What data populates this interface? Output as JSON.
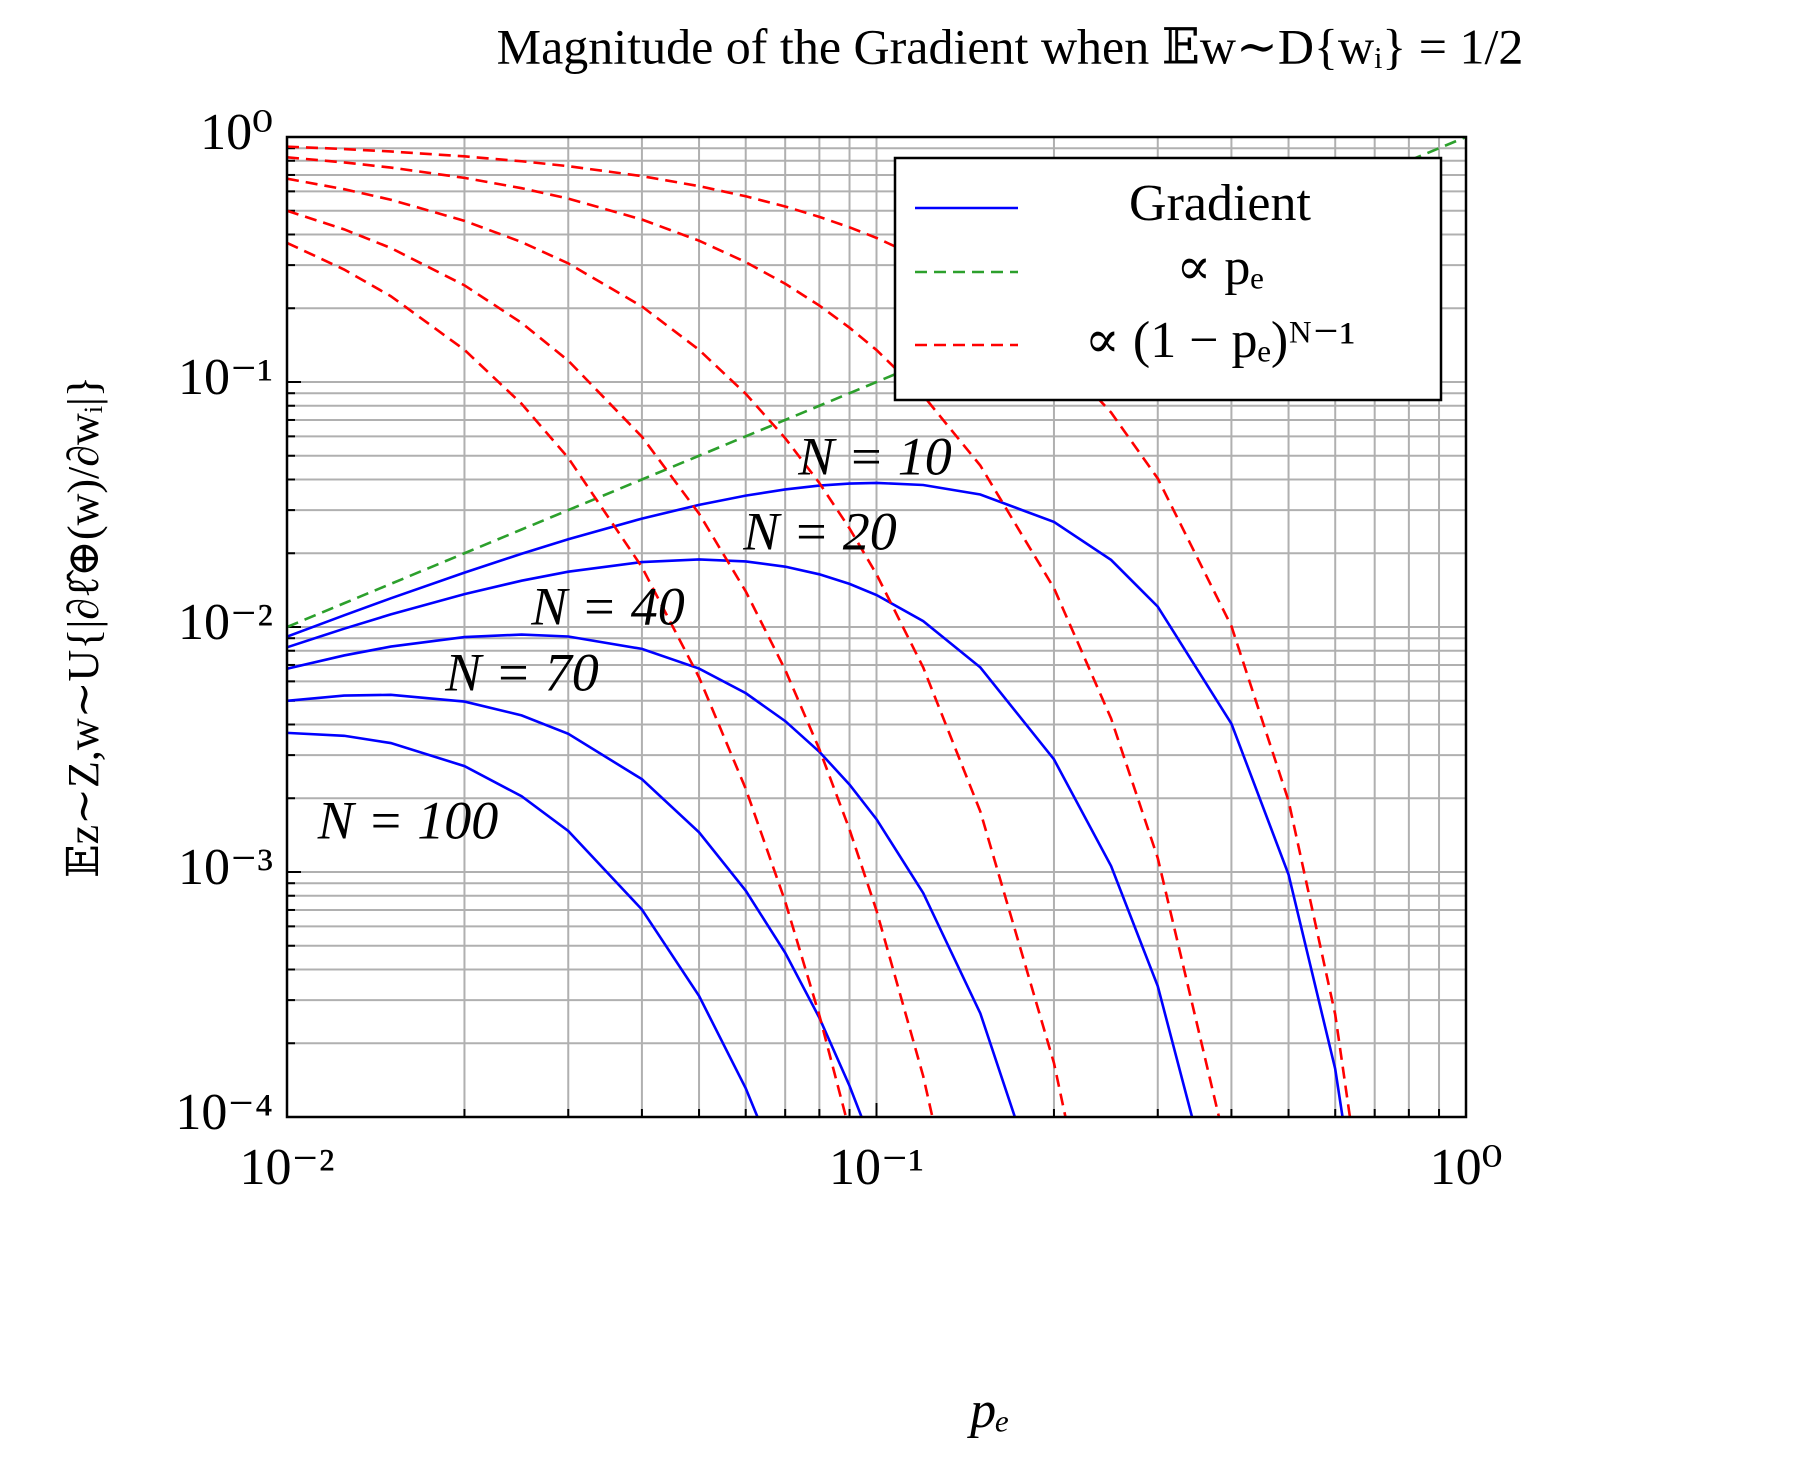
{
  "chart_data": {
    "type": "line",
    "title": "Magnitude of the Gradient when 𝔼w∼D{wᵢ} = 1/2",
    "xlabel": "pₑ",
    "ylabel": "𝔼z∼Z,w∼U{|∂ℓ̂⊕(w)/∂wᵢ|}",
    "xscale": "log",
    "yscale": "log",
    "xlim": [
      0.01,
      1
    ],
    "ylim": [
      0.0001,
      1
    ],
    "xticks": [
      {
        "value": 0.01,
        "label": "10⁻²"
      },
      {
        "value": 0.1,
        "label": "10⁻¹"
      },
      {
        "value": 1,
        "label": "10⁰"
      }
    ],
    "yticks": [
      {
        "value": 0.0001,
        "label": "10⁻⁴"
      },
      {
        "value": 0.001,
        "label": "10⁻³"
      },
      {
        "value": 0.01,
        "label": "10⁻²"
      },
      {
        "value": 0.1,
        "label": "10⁻¹"
      },
      {
        "value": 1,
        "label": "10⁰"
      }
    ],
    "x_minor_ticks": [
      0.02,
      0.03,
      0.04,
      0.05,
      0.06,
      0.07,
      0.08,
      0.09,
      0.2,
      0.3,
      0.4,
      0.5,
      0.6,
      0.7,
      0.8,
      0.9
    ],
    "y_minor_ticks": [
      0.0002,
      0.0003,
      0.0004,
      0.0005,
      0.0006,
      0.0007,
      0.0008,
      0.0009,
      0.002,
      0.003,
      0.004,
      0.005,
      0.006,
      0.007,
      0.008,
      0.009,
      0.02,
      0.03,
      0.04,
      0.05,
      0.06,
      0.07,
      0.08,
      0.09,
      0.2,
      0.3,
      0.4,
      0.5,
      0.6,
      0.7,
      0.8,
      0.9
    ],
    "grid": true,
    "x": [
      0.01,
      0.0125,
      0.015,
      0.02,
      0.025,
      0.03,
      0.04,
      0.05,
      0.06,
      0.07,
      0.08,
      0.09,
      0.1,
      0.12,
      0.15,
      0.2,
      0.25,
      0.3,
      0.4,
      0.5,
      0.6,
      0.7,
      0.8,
      0.9,
      1.0
    ],
    "series": [
      {
        "name": "N = 10",
        "color": "#0000ff",
        "linestyle": "solid",
        "values": [
          0.009135,
          0.011163,
          0.013092,
          0.016674,
          0.019905,
          0.022806,
          0.0277,
          0.03151,
          0.03438,
          0.03643,
          0.03778,
          0.03851,
          0.03874,
          0.03798,
          0.03474,
          0.02684,
          0.01878,
          0.01211,
          0.004032,
          0.000977,
          0.000157,
          1.38e-05,
          null,
          null,
          null
        ]
      },
      {
        "name": "N = 20",
        "color": "#0000ff",
        "linestyle": "solid",
        "values": [
          0.008262,
          0.009843,
          0.011256,
          0.013624,
          0.015453,
          0.016818,
          0.018416,
          0.01887,
          0.018516,
          0.017633,
          0.016408,
          0.014994,
          0.01351,
          0.010572,
          0.00684,
          0.002882,
          0.001058,
          0.000342,
          2.44e-05,
          null,
          null,
          null,
          null,
          null,
          null
        ]
      },
      {
        "name": "N = 40",
        "color": "#0000ff",
        "linestyle": "solid",
        "values": [
          0.006757,
          0.007654,
          0.008319,
          0.009096,
          0.009315,
          0.009147,
          0.00814,
          0.006765,
          0.00537,
          0.00413,
          0.003096,
          0.002273,
          0.001642,
          0.000821,
          0.000265,
          3.32e-05,
          null,
          null,
          null,
          null,
          null,
          null,
          null,
          null,
          null
        ]
      },
      {
        "name": "N = 70",
        "color": "#0000ff",
        "linestyle": "solid",
        "values": [
          0.004998,
          0.005248,
          0.005286,
          0.004962,
          0.004358,
          0.003666,
          0.002392,
          0.001452,
          0.000839,
          0.000468,
          0.000254,
          0.000134,
          6.96e-05,
          null,
          null,
          null,
          null,
          null,
          null,
          null,
          null,
          null,
          null,
          null,
          null
        ]
      },
      {
        "name": "N = 100",
        "color": "#0000ff",
        "linestyle": "solid",
        "values": [
          0.003697,
          0.003598,
          0.00336,
          0.002706,
          0.002038,
          0.00147,
          0.000703,
          0.000312,
          0.000131,
          5.31e-05,
          null,
          null,
          null,
          null,
          null,
          null,
          null,
          null,
          null,
          null,
          null,
          null,
          null,
          null,
          null
        ]
      },
      {
        "color": "#2ca02c",
        "linestyle": "dashed",
        "values": [
          0.01,
          0.0125,
          0.015,
          0.02,
          0.025,
          0.03,
          0.04,
          0.05,
          0.06,
          0.07,
          0.08,
          0.09,
          0.1,
          0.12,
          0.15,
          0.2,
          0.25,
          0.3,
          0.4,
          0.5,
          0.6,
          0.7,
          0.8,
          0.9,
          1.0
        ]
      },
      {
        "color": "#ff0000",
        "linestyle": "dashed",
        "values": [
          0.9135,
          0.893,
          0.8728,
          0.8337,
          0.7962,
          0.7602,
          0.6925,
          0.6302,
          0.573,
          0.5204,
          0.4722,
          0.4279,
          0.3874,
          0.3165,
          0.2316,
          0.1342,
          0.0751,
          0.0404,
          0.01008,
          0.001953,
          0.000262,
          1.97e-05,
          null,
          null,
          null
        ]
      },
      {
        "color": "#ff0000",
        "linestyle": "dashed",
        "values": [
          0.8262,
          0.7874,
          0.7504,
          0.6812,
          0.6181,
          0.5606,
          0.4604,
          0.3774,
          0.3086,
          0.2519,
          0.2051,
          0.1666,
          0.1351,
          0.0881,
          0.0456,
          0.01441,
          0.004231,
          0.00114,
          6.1e-05,
          null,
          null,
          null,
          null,
          null,
          null
        ]
      },
      {
        "color": "#ff0000",
        "linestyle": "dashed",
        "values": [
          0.6757,
          0.6123,
          0.5546,
          0.4548,
          0.3726,
          0.3049,
          0.2035,
          0.1353,
          0.0895,
          0.059,
          0.0387,
          0.02526,
          0.01642,
          0.00684,
          0.001767,
          0.000166,
          1.34e-05,
          null,
          null,
          null,
          null,
          null,
          null,
          null,
          null
        ]
      },
      {
        "color": "#ff0000",
        "linestyle": "dashed",
        "values": [
          0.4998,
          0.4198,
          0.3524,
          0.2481,
          0.1743,
          0.1222,
          0.0598,
          0.02903,
          0.01398,
          0.006689,
          0.003171,
          0.001491,
          0.000696,
          0.000147,
          1.35e-05,
          null,
          null,
          null,
          null,
          null,
          null,
          null,
          null,
          null,
          null
        ]
      },
      {
        "color": "#ff0000",
        "linestyle": "dashed",
        "values": [
          0.3697,
          0.2878,
          0.224,
          0.1353,
          0.0815,
          0.049,
          0.01757,
          0.00623,
          0.002186,
          0.000758,
          0.00026,
          8.8e-05,
          2.95e-05,
          null,
          null,
          null,
          null,
          null,
          null,
          null,
          null,
          null,
          null,
          null,
          null
        ]
      }
    ],
    "legend": {
      "location": "upper right",
      "entries": [
        {
          "label": "Gradient",
          "color": "#0000ff",
          "linestyle": "solid"
        },
        {
          "label": "∝ pₑ",
          "color": "#2ca02c",
          "linestyle": "dashed"
        },
        {
          "label": "∝ (1 − pₑ)ᴺ⁻¹",
          "color": "#ff0000",
          "linestyle": "dashed"
        }
      ]
    }
  }
}
